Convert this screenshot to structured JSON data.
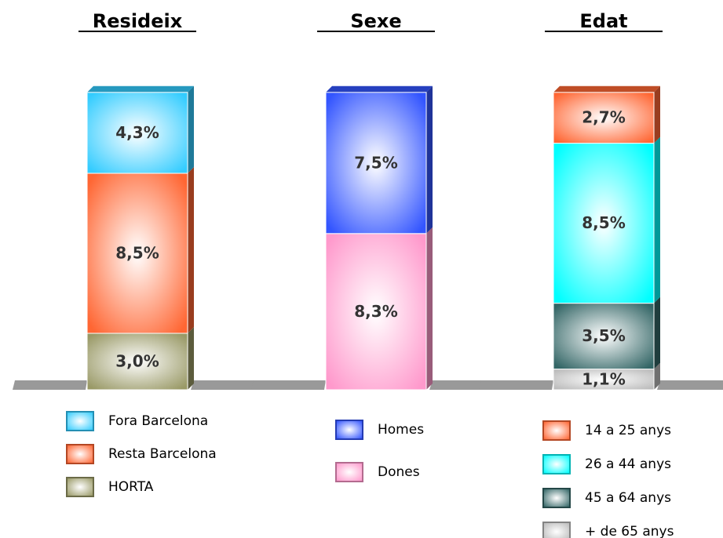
{
  "chart_data": [
    {
      "type": "stacked-bar",
      "title": "Resideix",
      "series": [
        {
          "name": "Fora Barcelona",
          "color": "#33ccff",
          "values": [
            4.3
          ],
          "value_labels": [
            "4,3%"
          ]
        },
        {
          "name": "Resta Barcelona",
          "color": "#ff6633",
          "values": [
            8.5
          ],
          "value_labels": [
            "8,5%"
          ]
        },
        {
          "name": "HORTA",
          "color": "#999966",
          "values": [
            3.0
          ],
          "value_labels": [
            "3,0%"
          ]
        }
      ]
    },
    {
      "type": "stacked-bar",
      "title": "Sexe",
      "series": [
        {
          "name": "Homes",
          "color": "#3355ff",
          "values": [
            7.5
          ],
          "value_labels": [
            "7,5%"
          ]
        },
        {
          "name": "Dones",
          "color": "#ff99cc",
          "values": [
            8.3
          ],
          "value_labels": [
            "8,3%"
          ]
        }
      ]
    },
    {
      "type": "stacked-bar",
      "title": "Edat",
      "series": [
        {
          "name": "14 a 25 anys",
          "color": "#ff6633",
          "values": [
            2.7
          ],
          "value_labels": [
            "2,7%"
          ]
        },
        {
          "name": "26 a 44 anys",
          "color": "#00ffff",
          "values": [
            8.5
          ],
          "value_labels": [
            "8,5%"
          ]
        },
        {
          "name": "45 a 64 anys",
          "color": "#336666",
          "values": [
            3.5
          ],
          "value_labels": [
            "3,5%"
          ]
        },
        {
          "name": "+ de 65 anys",
          "color": "#bbbbbb",
          "values": [
            1.1
          ],
          "value_labels": [
            "1,1%"
          ]
        }
      ]
    }
  ]
}
